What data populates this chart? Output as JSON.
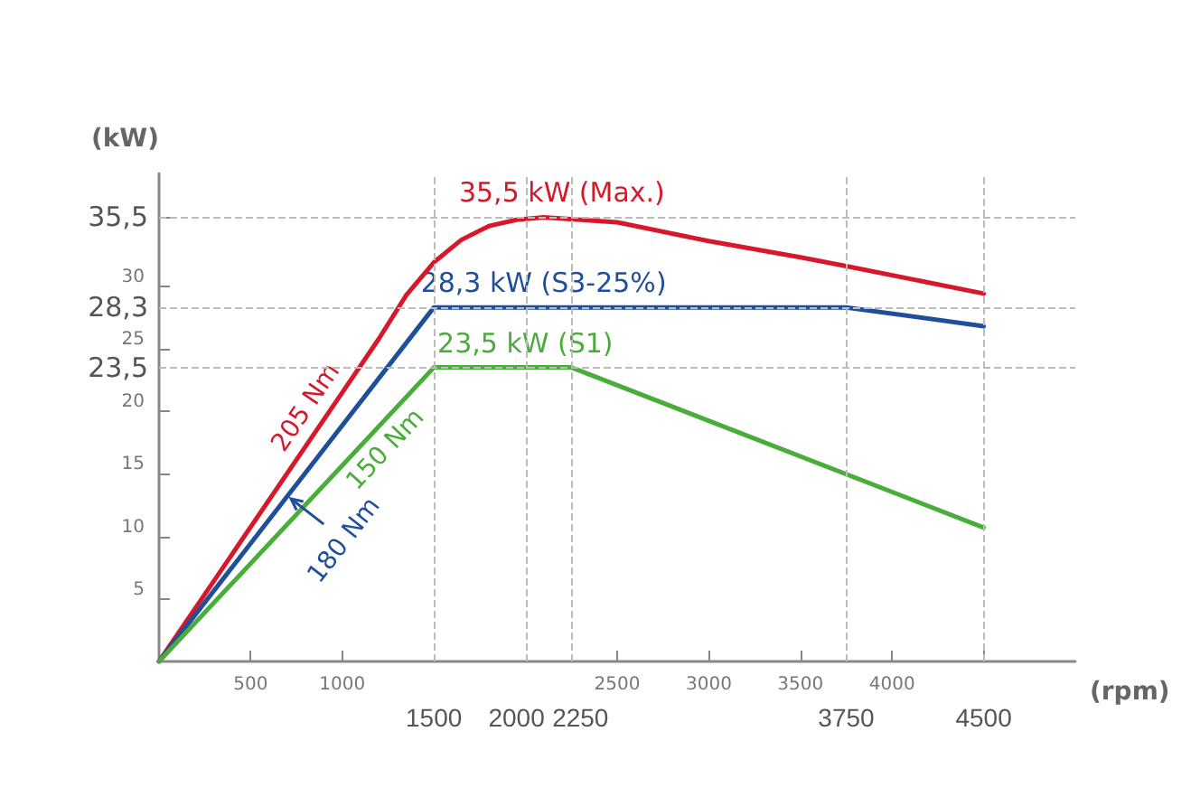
{
  "chart_data": {
    "type": "line",
    "xlabel": "(rpm)",
    "ylabel": "(kW)",
    "xlim": [
      0,
      5000
    ],
    "ylim": [
      0,
      39
    ],
    "xticks": [
      500,
      1000,
      2500,
      3000,
      3500,
      4000,
      {
        "value": 4500,
        "label": null
      }
    ],
    "yticks": [
      5,
      10,
      15,
      20,
      25,
      30,
      {
        "value": 35.5,
        "label": null
      }
    ],
    "series": [
      {
        "color": "#d7182a",
        "x": [
          0,
          1000,
          1200,
          1350,
          1500,
          1650,
          1800,
          1950,
          2100,
          2500,
          3000,
          3500,
          3750,
          4500
        ],
        "values": [
          0,
          21.5,
          25.8,
          29.3,
          31.9,
          33.7,
          34.8,
          35.3,
          35.5,
          35.1,
          33.6,
          32.3,
          31.6,
          29.4
        ]
      },
      {
        "color": "#1f4e9a",
        "x": [
          0,
          1500,
          3750,
          4500
        ],
        "values": [
          0,
          28.3,
          28.3,
          26.8
        ]
      },
      {
        "color": "#4aad3a",
        "x": [
          0,
          1500,
          2250,
          4500
        ],
        "values": [
          0,
          23.5,
          23.5,
          10.7
        ]
      }
    ],
    "ref_lines": [
      {
        "axis": "y",
        "value": 35.5,
        "label": "35,5"
      },
      {
        "axis": "y",
        "value": 28.3,
        "label": "28,3"
      },
      {
        "axis": "y",
        "value": 23.5,
        "label": "23,5"
      },
      {
        "axis": "x",
        "value": 1500,
        "label": "1500"
      },
      {
        "axis": "x",
        "value": 2000,
        "label": "2000"
      },
      {
        "axis": "x",
        "value": 2250,
        "label": "2250"
      },
      {
        "axis": "x",
        "value": 3750,
        "label": "3750"
      },
      {
        "axis": "x",
        "value": 4500,
        "label": "4500"
      }
    ],
    "annotations": [
      {
        "text": "35,5 kW (Max.)",
        "x": 2100,
        "y": 35.5
      },
      {
        "text": "28,3 kW (S3-25%)",
        "x": 2000,
        "y": 28.3
      },
      {
        "text": "23,5 kW (S1)",
        "x": 1900,
        "y": 23.5
      },
      {
        "text": "205 Nm",
        "x": 900,
        "y": 19.3
      },
      {
        "text": "180 Nm",
        "x": 700,
        "y": 13.2
      },
      {
        "text": "150 Nm",
        "x": 1150,
        "y": 18.1
      }
    ],
    "grid": false,
    "marker": "none",
    "line_style": "solid"
  }
}
